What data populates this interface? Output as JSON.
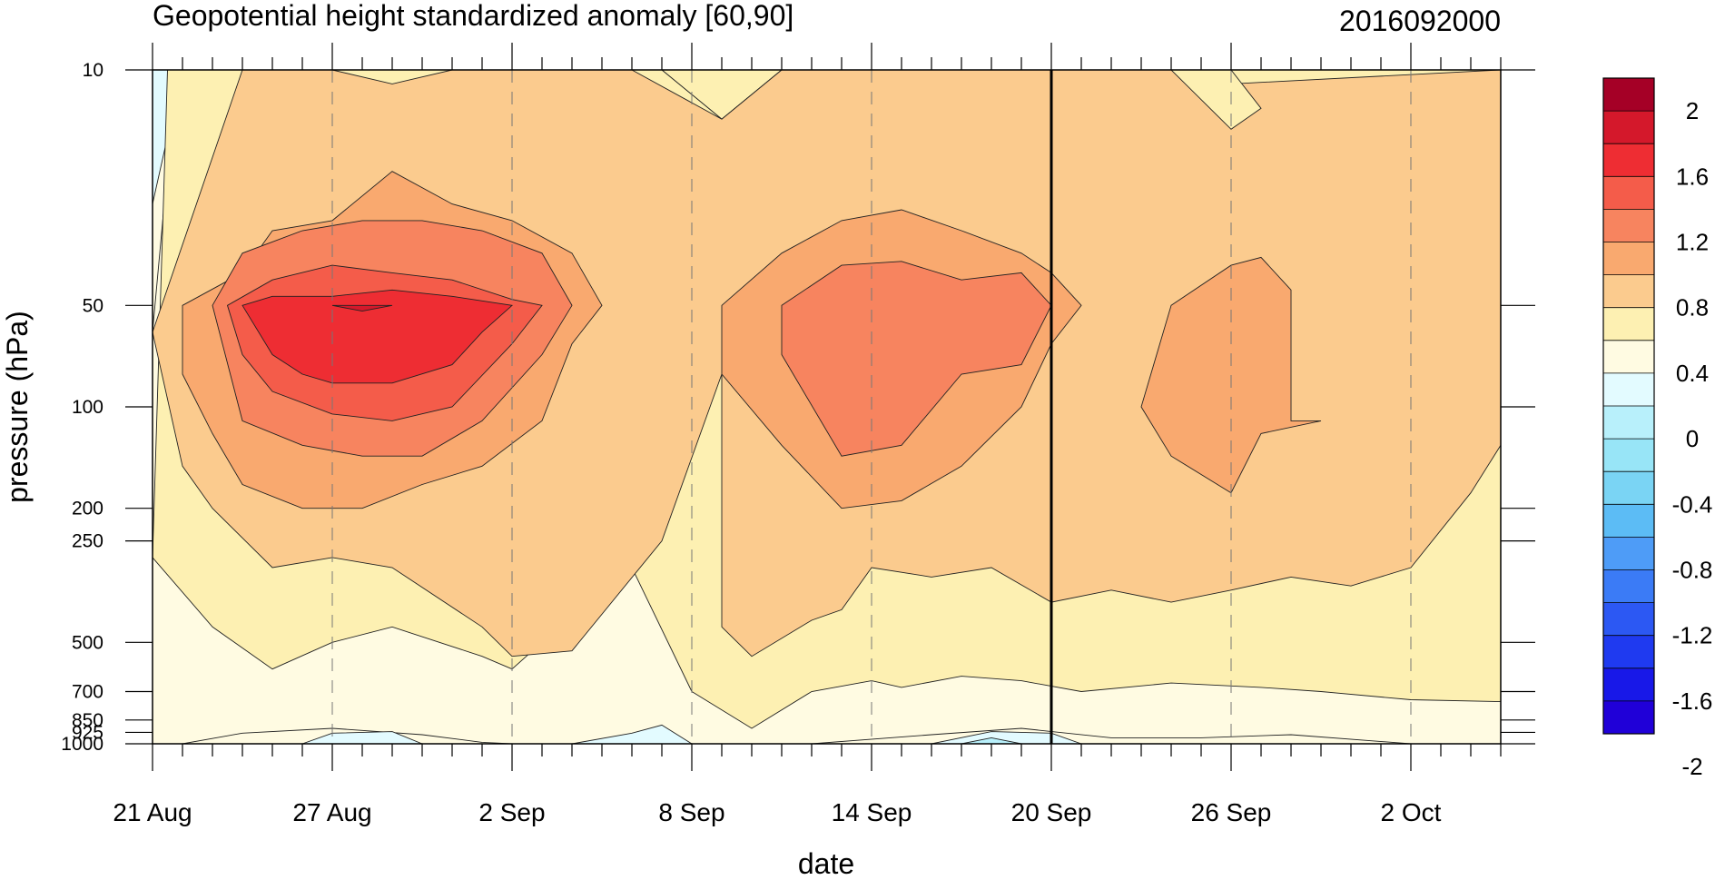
{
  "chart_data": {
    "type": "heatmap",
    "title": "Geopotential height standardized anomaly [60,90]",
    "subtitle": "2016092000",
    "xlabel": "date",
    "ylabel": "pressure (hPa)",
    "x_tick_labels": [
      "21 Aug",
      "27 Aug",
      "2 Sep",
      "8 Sep",
      "14 Sep",
      "20 Sep",
      "26 Sep",
      "2 Oct"
    ],
    "x_tick_days": [
      0,
      6,
      12,
      18,
      24,
      30,
      36,
      42
    ],
    "xlim_days_from_21_Aug": [
      0,
      45
    ],
    "y_scale": "log",
    "ylim": [
      1000,
      10
    ],
    "y_tick_labels": [
      "10",
      "50",
      "100",
      "200",
      "250",
      "500",
      "700",
      "850",
      "925",
      "1000"
    ],
    "y_tick_values": [
      10,
      50,
      100,
      200,
      250,
      500,
      700,
      850,
      925,
      1000
    ],
    "analysis_marker_label": "20 Sep",
    "grid": "dashed vertical lines at date ticks",
    "colorbar": {
      "placement": "right",
      "labels": [
        "2",
        "1.6",
        "1.2",
        "0.8",
        "0.4",
        "0",
        "-0.4",
        "-0.8",
        "-1.2",
        "-1.6",
        "-2"
      ],
      "colors_top_to_bottom": [
        "#a50026",
        "#d4182b",
        "#ee2d33",
        "#f45c4a",
        "#f7845f",
        "#f9a96f",
        "#fbcb8e",
        "#fdf0b2",
        "#fffbe2",
        "#e3fbff",
        "#b8f0fb",
        "#98e5f7",
        "#7ad4f4",
        "#5cbcf5",
        "#4e9cf7",
        "#3b7bf6",
        "#2c58f3",
        "#1f3af0",
        "#1818e8",
        "#2000d8"
      ]
    },
    "levels": [
      -2,
      -1.8,
      -1.6,
      -1.4,
      -1.2,
      -1,
      -0.8,
      -0.6,
      -0.4,
      -0.2,
      0,
      0.2,
      0.4,
      0.6,
      0.8,
      1,
      1.2,
      1.4,
      1.6,
      1.8,
      2
    ],
    "regions": [
      {
        "name": "positive-anomaly-field",
        "value_range": [
          0.2,
          0.4
        ],
        "color": "#fdf0b2"
      },
      {
        "name": "late-aug-stratospheric-peak",
        "value_range": [
          1.4,
          1.6
        ],
        "color": "#ee2d33"
      },
      {
        "name": "mid-sep-stratospheric-peak",
        "value_range": [
          1.2,
          1.4
        ],
        "color": "#f45c4a"
      },
      {
        "name": "late-sep-anomaly",
        "value_range": [
          0.8,
          1.0
        ],
        "color": "#f9a96f"
      },
      {
        "name": "near-surface-negative-anomaly",
        "value_range": [
          -0.4,
          -0.2
        ],
        "color": "#b8f0fb"
      }
    ]
  }
}
